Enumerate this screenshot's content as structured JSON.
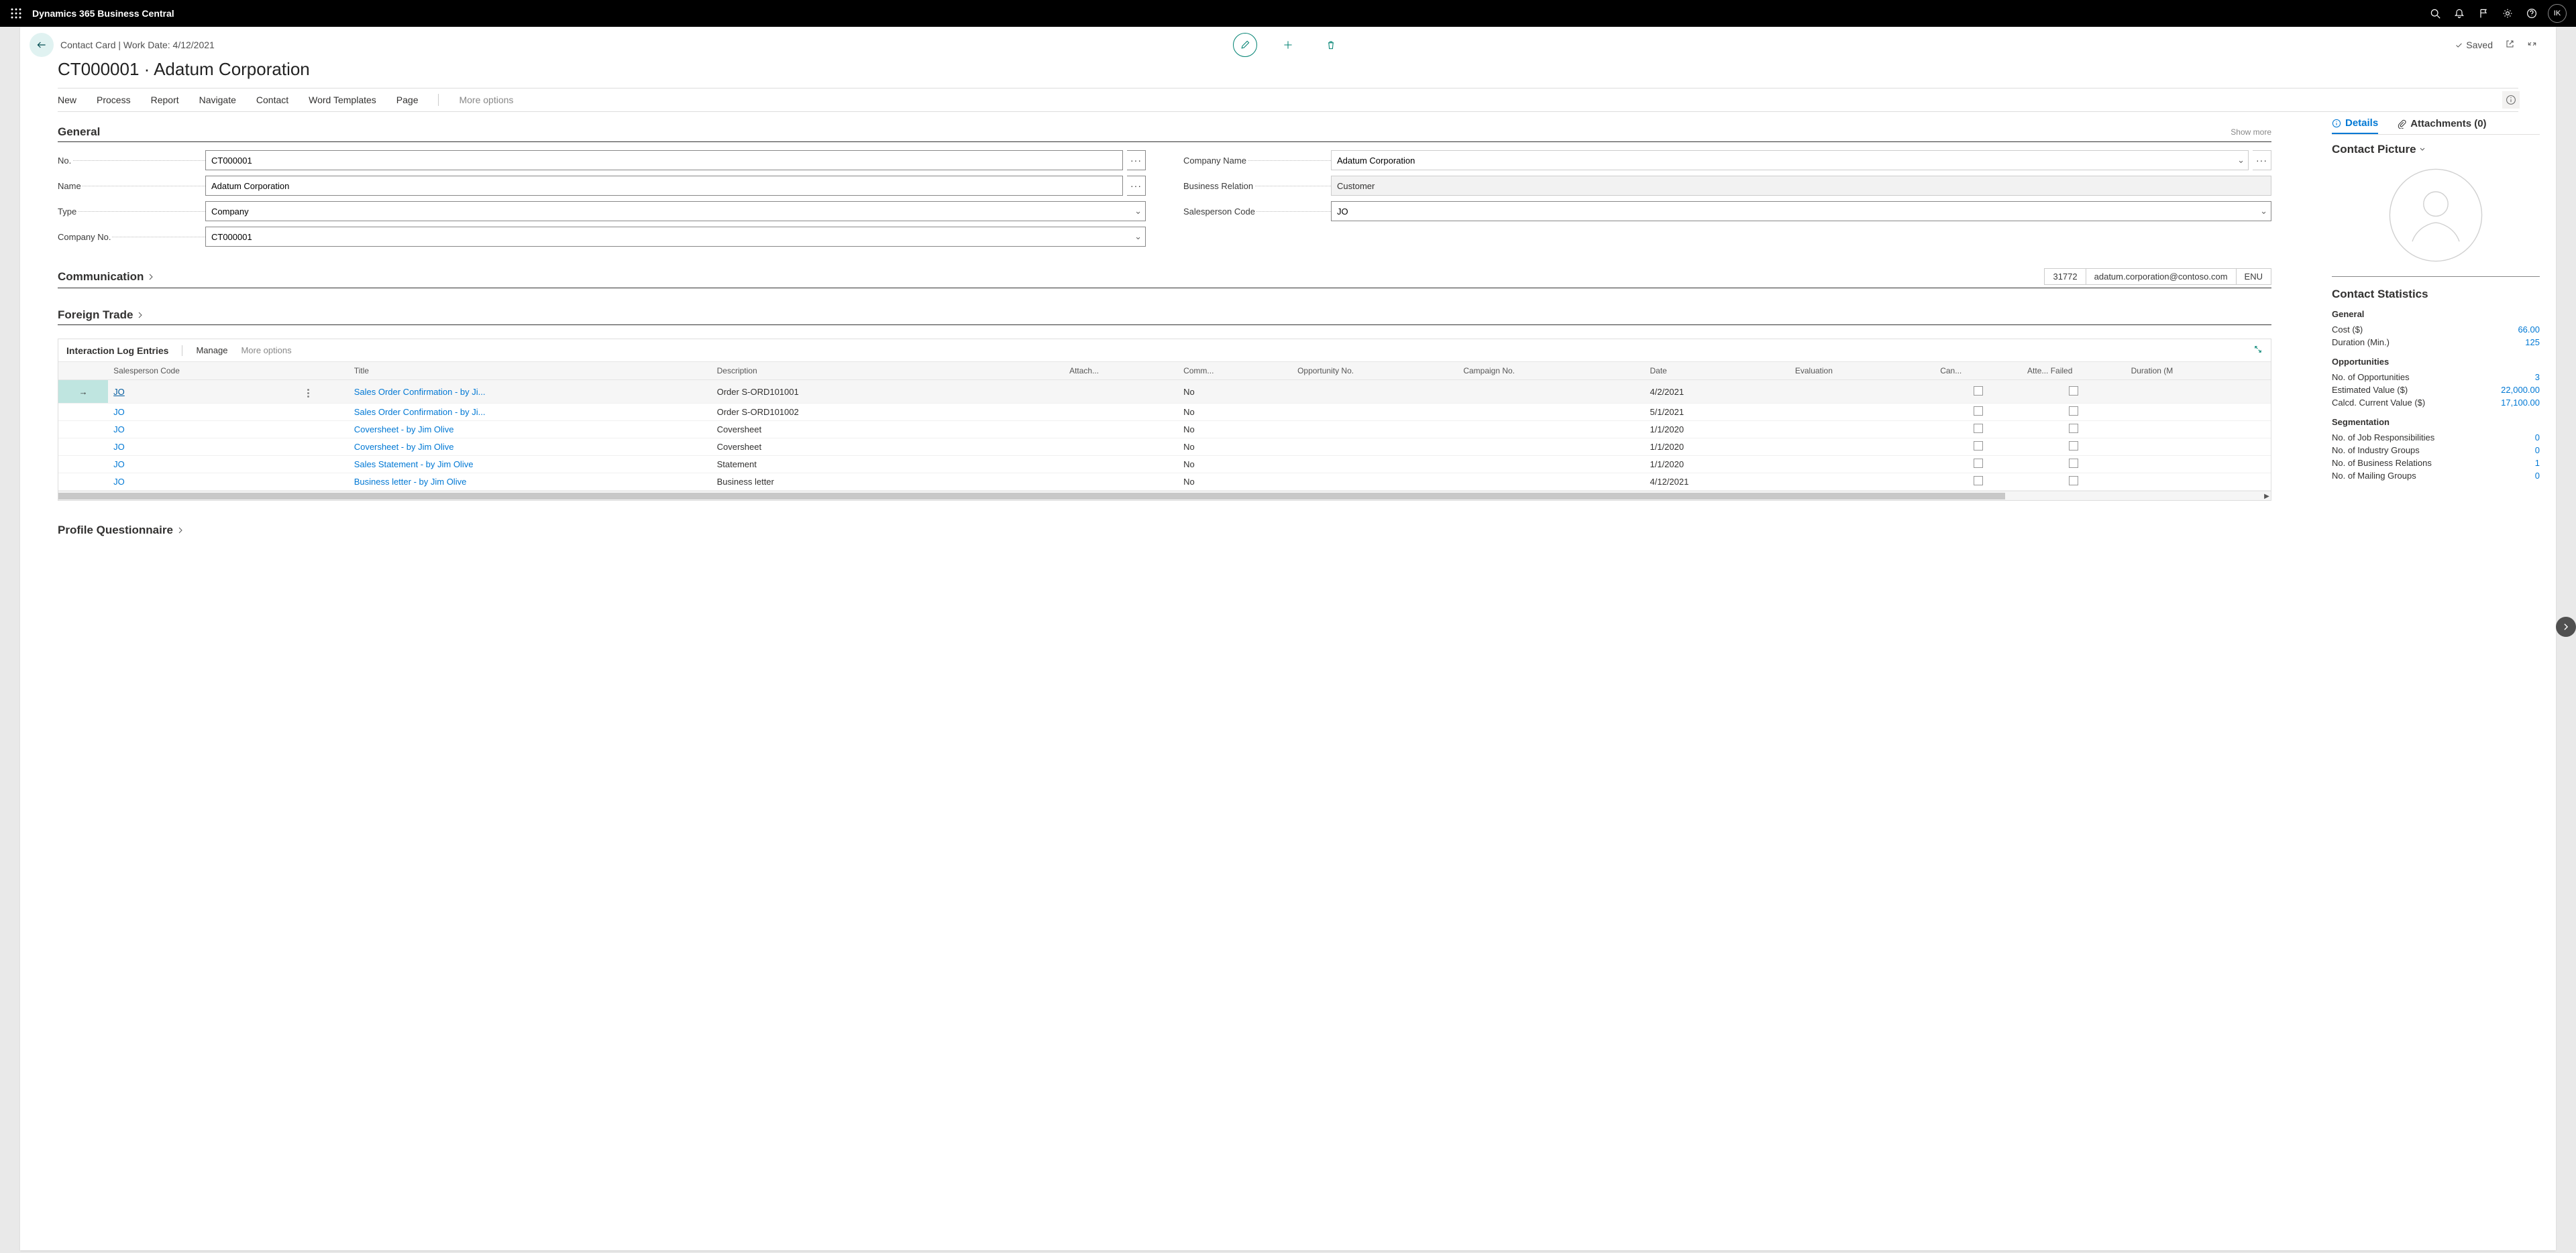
{
  "topbar": {
    "product": "Dynamics 365 Business Central",
    "avatar_initials": "IK"
  },
  "card": {
    "breadcrumb": "Contact Card | Work Date: 4/12/2021",
    "title": "CT000001 · Adatum Corporation",
    "saved_label": "Saved"
  },
  "actions": {
    "new": "New",
    "process": "Process",
    "report": "Report",
    "navigate": "Navigate",
    "contact": "Contact",
    "word_templates": "Word Templates",
    "page": "Page",
    "more": "More options"
  },
  "general": {
    "heading": "General",
    "show_more": "Show more",
    "fields": {
      "no_label": "No.",
      "no_value": "CT000001",
      "name_label": "Name",
      "name_value": "Adatum Corporation",
      "type_label": "Type",
      "type_value": "Company",
      "company_no_label": "Company No.",
      "company_no_value": "CT000001",
      "company_name_label": "Company Name",
      "company_name_value": "Adatum Corporation",
      "bus_rel_label": "Business Relation",
      "bus_rel_value": "Customer",
      "salesperson_label": "Salesperson Code",
      "salesperson_value": "JO"
    }
  },
  "communication": {
    "heading": "Communication",
    "phone": "31772",
    "email": "adatum.corporation@contoso.com",
    "lang": "ENU"
  },
  "foreign_trade": {
    "heading": "Foreign Trade"
  },
  "profile_q": {
    "heading": "Profile Questionnaire"
  },
  "subgrid": {
    "title": "Interaction Log Entries",
    "manage": "Manage",
    "more": "More options",
    "cols": {
      "salesperson": "Salesperson Code",
      "title": "Title",
      "description": "Description",
      "attach": "Attach...",
      "comm": "Comm...",
      "opp_no": "Opportunity No.",
      "campaign": "Campaign No.",
      "date": "Date",
      "evaluation": "Evaluation",
      "can": "Can...",
      "atte": "Atte... Failed",
      "duration": "Duration (M"
    },
    "rows": [
      {
        "sp": "JO",
        "title": "Sales Order Confirmation - by Ji...",
        "desc": "Order S-ORD101001",
        "comm": "No",
        "date": "4/2/2021"
      },
      {
        "sp": "JO",
        "title": "Sales Order Confirmation - by Ji...",
        "desc": "Order S-ORD101002",
        "comm": "No",
        "date": "5/1/2021"
      },
      {
        "sp": "JO",
        "title": "Coversheet - by Jim Olive",
        "desc": "Coversheet",
        "comm": "No",
        "date": "1/1/2020"
      },
      {
        "sp": "JO",
        "title": "Coversheet - by Jim Olive",
        "desc": "Coversheet",
        "comm": "No",
        "date": "1/1/2020"
      },
      {
        "sp": "JO",
        "title": "Sales Statement - by Jim Olive",
        "desc": "Statement",
        "comm": "No",
        "date": "1/1/2020"
      },
      {
        "sp": "JO",
        "title": "Business letter - by Jim Olive",
        "desc": "Business letter",
        "comm": "No",
        "date": "4/12/2021"
      }
    ]
  },
  "factbox": {
    "tabs": {
      "details": "Details",
      "attachments": "Attachments (0)"
    },
    "picture_title": "Contact Picture",
    "stats_title": "Contact Statistics",
    "groups": {
      "general": {
        "title": "General",
        "rows": [
          {
            "l": "Cost ($)",
            "v": "66.00"
          },
          {
            "l": "Duration (Min.)",
            "v": "125"
          }
        ]
      },
      "opportunities": {
        "title": "Opportunities",
        "rows": [
          {
            "l": "No. of Opportunities",
            "v": "3"
          },
          {
            "l": "Estimated Value ($)",
            "v": "22,000.00"
          },
          {
            "l": "Calcd. Current Value ($)",
            "v": "17,100.00"
          }
        ]
      },
      "segmentation": {
        "title": "Segmentation",
        "rows": [
          {
            "l": "No. of Job Responsibilities",
            "v": "0"
          },
          {
            "l": "No. of Industry Groups",
            "v": "0"
          },
          {
            "l": "No. of Business Relations",
            "v": "1"
          },
          {
            "l": "No. of Mailing Groups",
            "v": "0"
          }
        ]
      }
    }
  }
}
